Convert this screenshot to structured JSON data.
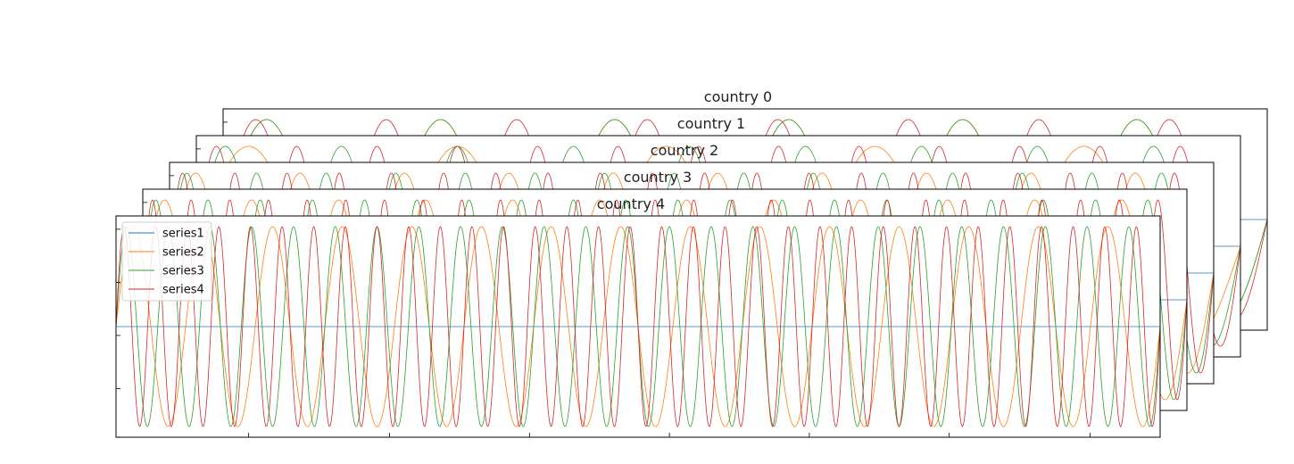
{
  "chart_data": {
    "type": "line",
    "layout": "stacked overlapping panels (cascaded, back to front)",
    "panels": [
      {
        "title": "country 0",
        "series": [
          {
            "name": "series1",
            "color": "#1f77b4",
            "function": "constant",
            "amplitude": 0.0,
            "periods": 0
          },
          {
            "name": "series2",
            "color": "#ff7f0e",
            "function": "sine",
            "amplitude": 1.0,
            "periods": 6
          },
          {
            "name": "series3",
            "color": "#2ca02c",
            "function": "sine",
            "amplitude": 1.0,
            "periods": 6
          },
          {
            "name": "series4",
            "color": "#d62728",
            "function": "sine",
            "amplitude": 1.0,
            "periods": 8
          }
        ]
      },
      {
        "title": "country 1",
        "series": [
          {
            "name": "series1",
            "color": "#1f77b4",
            "function": "constant",
            "amplitude": 0.0,
            "periods": 0
          },
          {
            "name": "series2",
            "color": "#ff7f0e",
            "function": "sine",
            "amplitude": 1.0,
            "periods": 5
          },
          {
            "name": "series3",
            "color": "#2ca02c",
            "function": "sine",
            "amplitude": 1.0,
            "periods": 9
          },
          {
            "name": "series4",
            "color": "#d62728",
            "function": "sine",
            "amplitude": 1.0,
            "periods": 13
          }
        ]
      },
      {
        "title": "country 2",
        "series": [
          {
            "name": "series1",
            "color": "#1f77b4",
            "function": "constant",
            "amplitude": 0.0,
            "periods": 0
          },
          {
            "name": "series2",
            "color": "#ff7f0e",
            "function": "sine",
            "amplitude": 1.0,
            "periods": 10
          },
          {
            "name": "series3",
            "color": "#2ca02c",
            "function": "sine",
            "amplitude": 1.0,
            "periods": 15
          },
          {
            "name": "series4",
            "color": "#d62728",
            "function": "sine",
            "amplitude": 1.0,
            "periods": 20
          }
        ]
      },
      {
        "title": "country 3",
        "series": [
          {
            "name": "series1",
            "color": "#1f77b4",
            "function": "constant",
            "amplitude": 0.0,
            "periods": 0
          },
          {
            "name": "series2",
            "color": "#ff7f0e",
            "function": "sine",
            "amplitude": 1.0,
            "periods": 12
          },
          {
            "name": "series3",
            "color": "#2ca02c",
            "function": "sine",
            "amplitude": 1.0,
            "periods": 20
          },
          {
            "name": "series4",
            "color": "#d62728",
            "function": "sine",
            "amplitude": 1.0,
            "periods": 27
          }
        ]
      },
      {
        "title": "country 4",
        "series": [
          {
            "name": "series1",
            "color": "#1f77b4",
            "function": "constant",
            "amplitude": 0.0,
            "periods": 0
          },
          {
            "name": "series2",
            "color": "#ff7f0e",
            "function": "sine",
            "amplitude": 1.0,
            "periods": 15
          },
          {
            "name": "series3",
            "color": "#2ca02c",
            "function": "sine",
            "amplitude": 1.0,
            "periods": 25
          },
          {
            "name": "series4",
            "color": "#d62728",
            "function": "sine",
            "amplitude": 1.0,
            "periods": 33
          }
        ]
      }
    ],
    "legend": {
      "placement": "top-left of front panel",
      "entries": [
        {
          "name": "series1",
          "color": "#1f77b4"
        },
        {
          "name": "series2",
          "color": "#ff7f0e"
        },
        {
          "name": "series3",
          "color": "#2ca02c"
        },
        {
          "name": "series4",
          "color": "#d62728"
        }
      ]
    },
    "ylim": [
      -1.0,
      1.0
    ],
    "grid": false,
    "tick_labels_shown": false
  }
}
